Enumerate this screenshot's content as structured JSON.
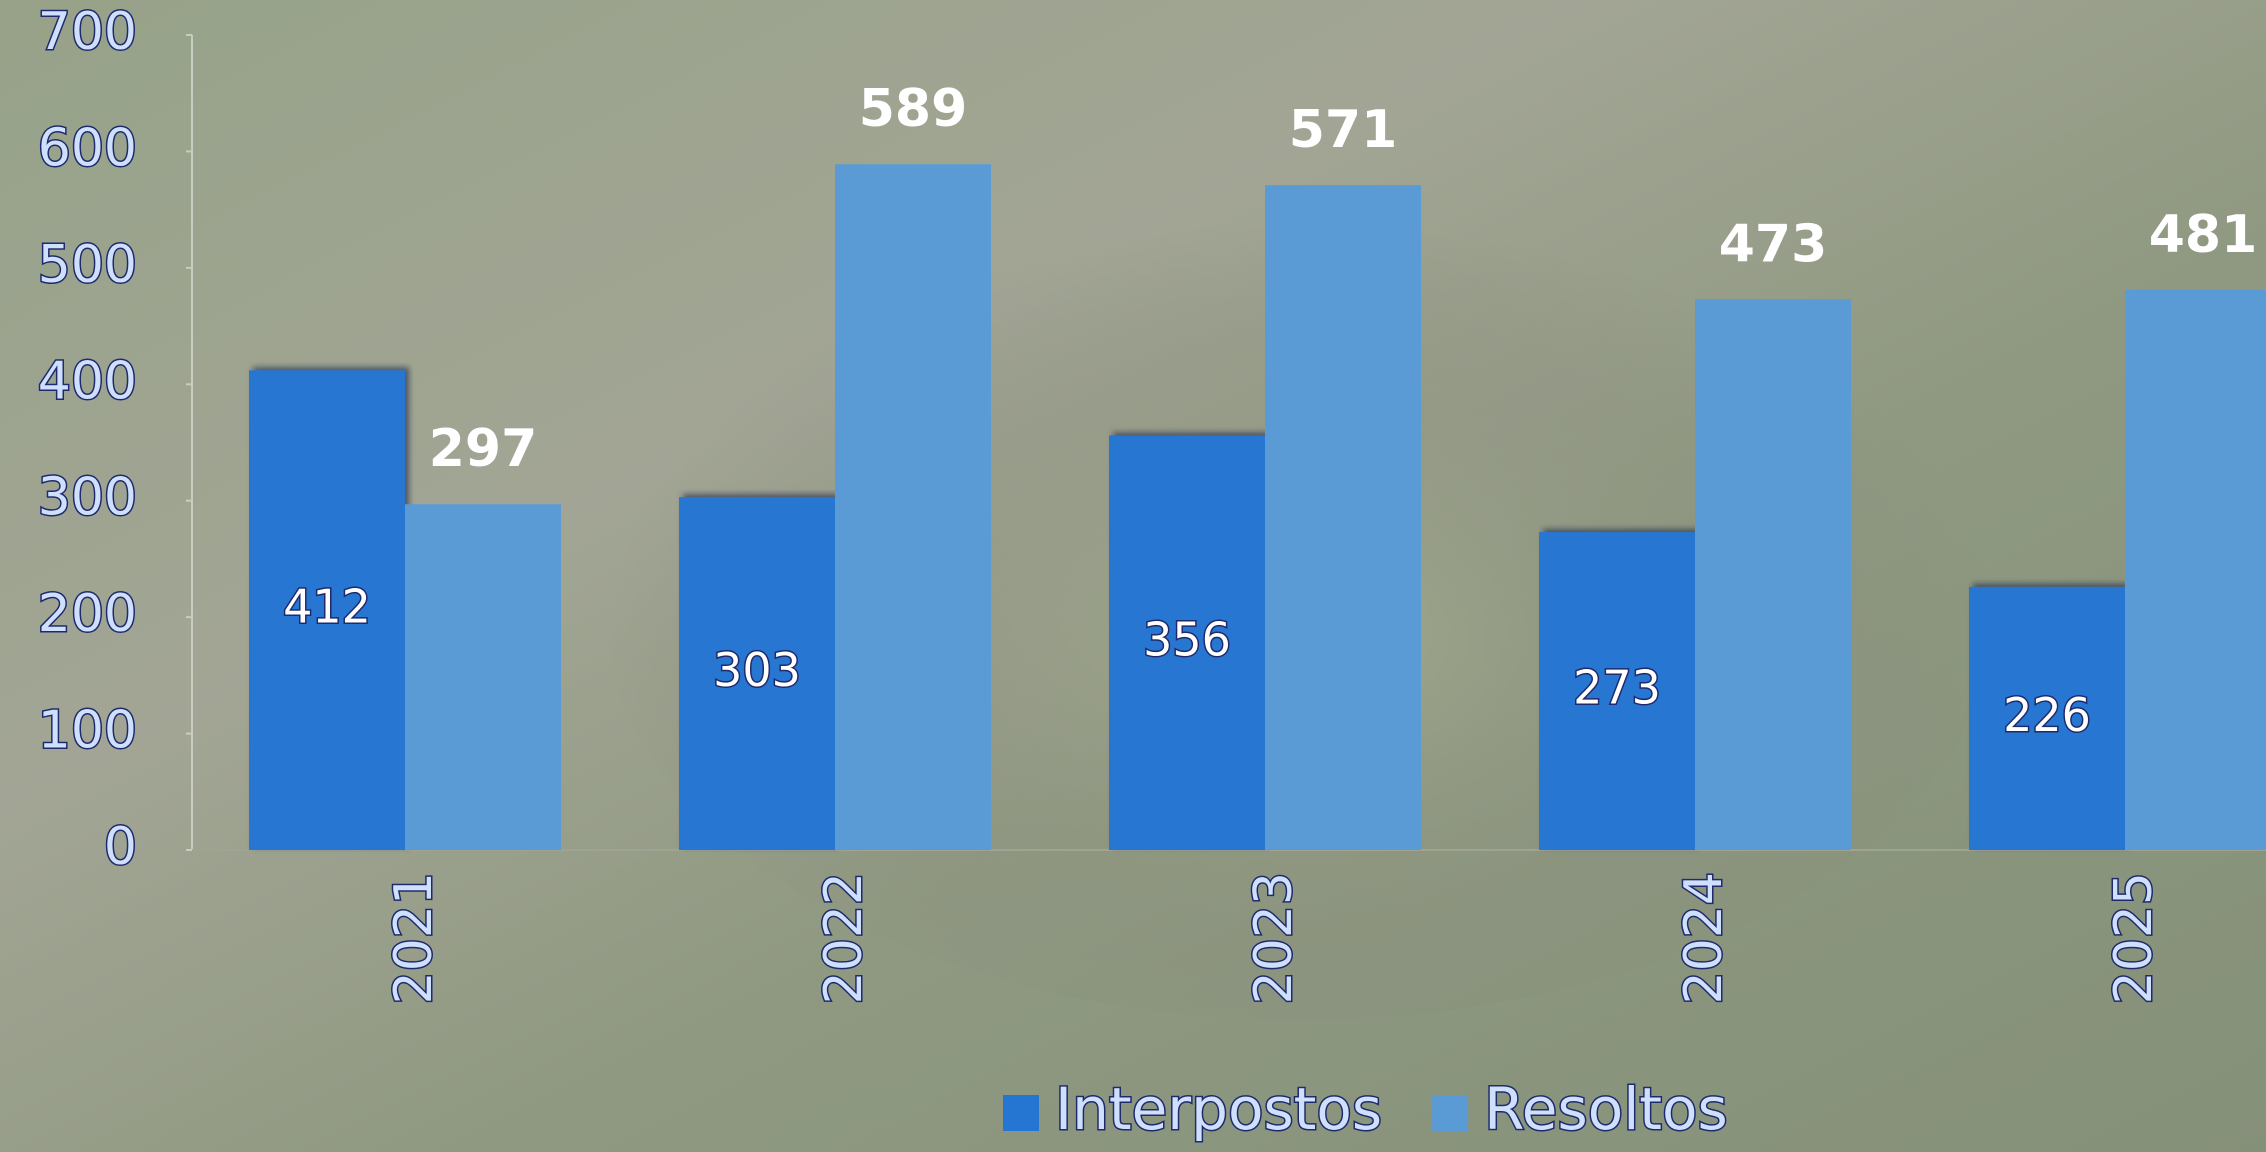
{
  "chart_data": {
    "type": "bar",
    "categories": [
      "2021",
      "2022",
      "2023",
      "2024",
      "2025"
    ],
    "series": [
      {
        "name": "Interpostos",
        "color": "#2576d2",
        "values": [
          412,
          303,
          356,
          273,
          226
        ]
      },
      {
        "name": "Resoltos",
        "color": "#5b9bd5",
        "values": [
          297,
          589,
          571,
          473,
          481
        ]
      }
    ],
    "ylim": [
      0,
      700
    ],
    "yticks": [
      0,
      100,
      200,
      300,
      400,
      500,
      600,
      700
    ],
    "legend": "bottom"
  }
}
